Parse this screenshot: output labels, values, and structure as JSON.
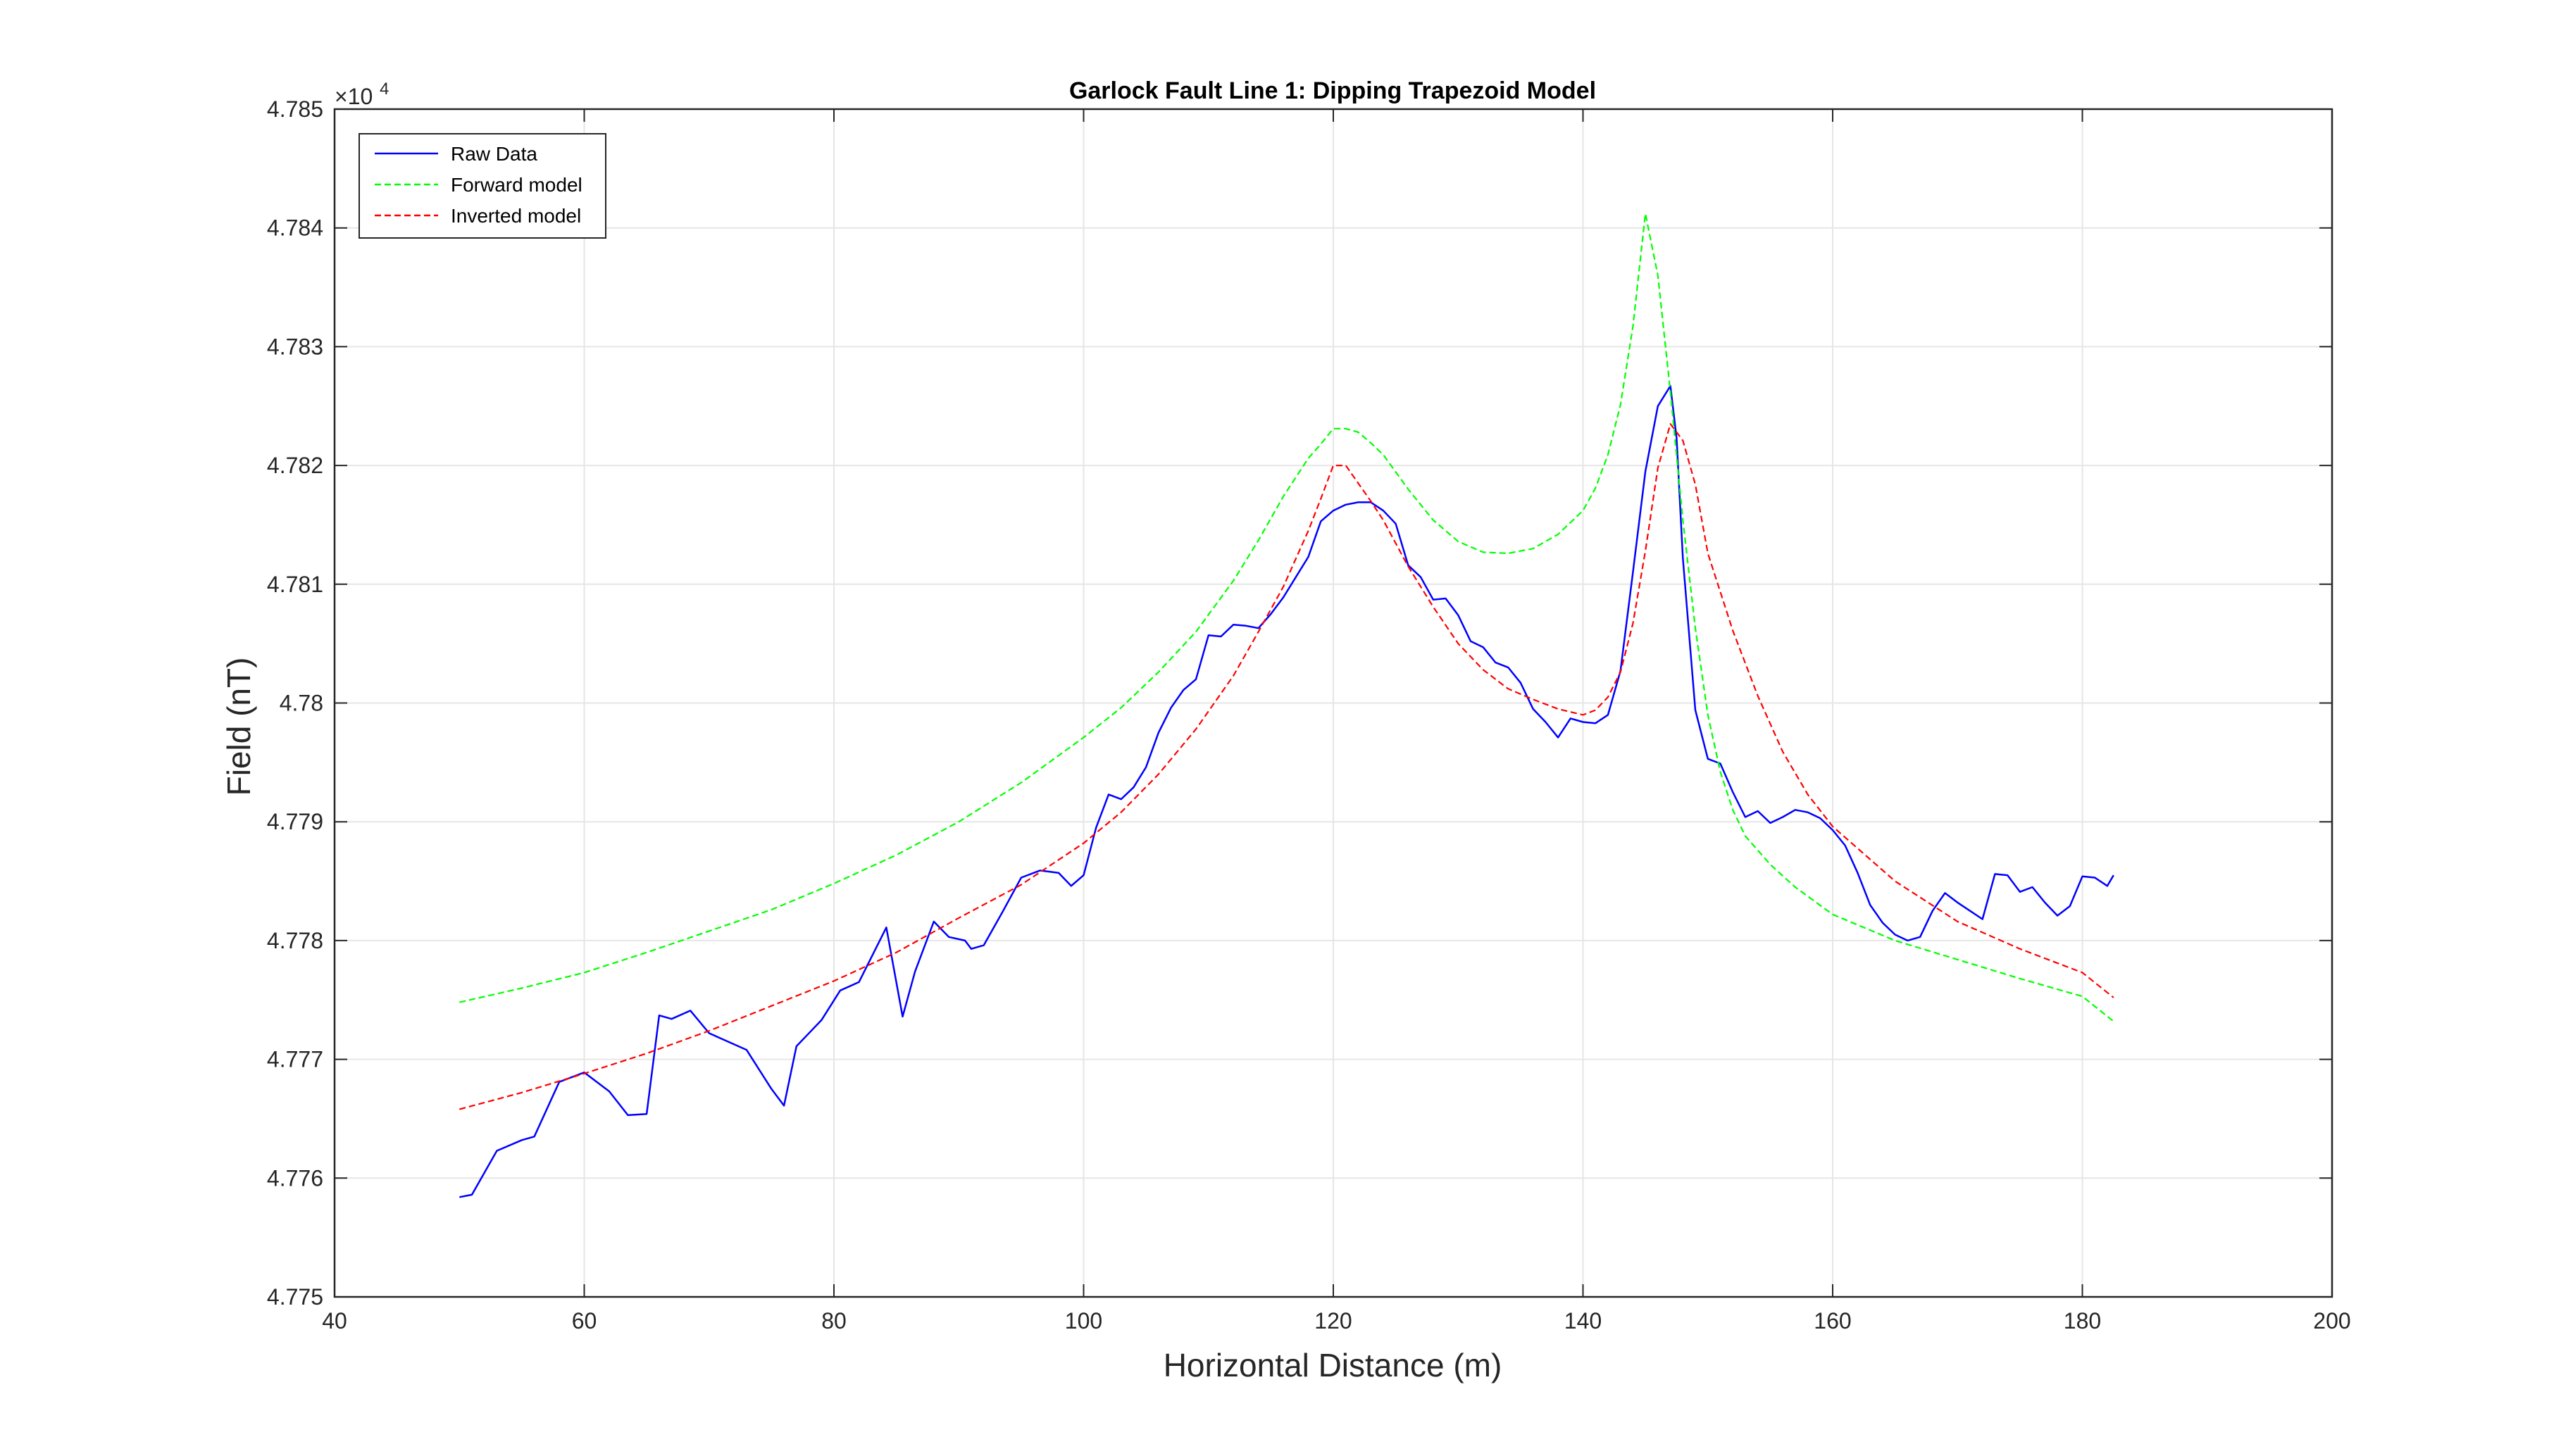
{
  "chart_data": {
    "type": "line",
    "title": "Garlock Fault Line 1: Dipping Trapezoid Model",
    "xlabel": "Horizontal Distance (m)",
    "ylabel": "Field (nT)",
    "exponent_base": "×10",
    "exponent_power": "4",
    "xlim": [
      40,
      200
    ],
    "ylim": [
      47750,
      47850
    ],
    "x_ticks": [
      40,
      60,
      80,
      100,
      120,
      140,
      160,
      180,
      200
    ],
    "y_ticks": [
      47750,
      47760,
      47770,
      47780,
      47790,
      47800,
      47810,
      47820,
      47830,
      47840,
      47850
    ],
    "x_tick_labels": [
      "40",
      "60",
      "80",
      "100",
      "120",
      "140",
      "160",
      "180",
      "200"
    ],
    "y_tick_labels": [
      "4.775",
      "4.776",
      "4.777",
      "4.778",
      "4.779",
      "4.78",
      "4.781",
      "4.782",
      "4.783",
      "4.784",
      "4.785"
    ],
    "grid": true,
    "legend_position": "top-left",
    "series": [
      {
        "name": "Raw Data",
        "color": "#0000ff",
        "style": "solid",
        "x": [
          50,
          51,
          53,
          55,
          56,
          58,
          60,
          62,
          63.5,
          65,
          66,
          67,
          68.5,
          70,
          73,
          75,
          76,
          77,
          79,
          80.5,
          82,
          84.2,
          85.5,
          86.5,
          88,
          89.2,
          90.5,
          91,
          92,
          93.5,
          95,
          96.5,
          98,
          99,
          100,
          101,
          102,
          103,
          104,
          105,
          106,
          107,
          108,
          109,
          110,
          111,
          112,
          113,
          114,
          115,
          116,
          117,
          118,
          119,
          120,
          121,
          122,
          123,
          124,
          125,
          126,
          127,
          128,
          129,
          130,
          131,
          132,
          133,
          134,
          135,
          136,
          137,
          138,
          139,
          140,
          141,
          142,
          143,
          144,
          145,
          146,
          147,
          147.5,
          148,
          149,
          150,
          151,
          152,
          153,
          154,
          155,
          156,
          157,
          158,
          159,
          160,
          161,
          162,
          163,
          164,
          165,
          166,
          167,
          168,
          169,
          170,
          171,
          172,
          173,
          174,
          175,
          176,
          177,
          178,
          179,
          180,
          181,
          182,
          182.5
        ],
        "y": [
          47758.4,
          47758.6,
          47762.3,
          47763.2,
          47763.5,
          47768.1,
          47768.9,
          47767.3,
          47765.3,
          47765.4,
          47773.7,
          47773.4,
          47774.1,
          47772.2,
          47770.8,
          47767.5,
          47766.1,
          47771.1,
          47773.3,
          47775.8,
          47776.5,
          47781.1,
          47773.6,
          47777.4,
          47781.6,
          47780.3,
          47780.0,
          47779.3,
          47779.6,
          47782.4,
          47785.3,
          47785.9,
          47785.7,
          47784.6,
          47785.5,
          47789.5,
          47792.3,
          47791.9,
          47792.9,
          47794.6,
          47797.5,
          47799.6,
          47801.1,
          47802.0,
          47805.7,
          47805.6,
          47806.6,
          47806.5,
          47806.3,
          47807.5,
          47808.9,
          47810.6,
          47812.3,
          47815.3,
          47816.2,
          47816.7,
          47816.9,
          47816.9,
          47816.2,
          47815.1,
          47811.6,
          47810.6,
          47808.7,
          47808.8,
          47807.4,
          47805.2,
          47804.7,
          47803.4,
          47803.0,
          47801.7,
          47799.5,
          47798.4,
          47797.1,
          47798.7,
          47798.4,
          47798.3,
          47799.0,
          47802.7,
          47811.0,
          47819.5,
          47825.0,
          47826.7,
          47822.3,
          47812.2,
          47799.4,
          47795.3,
          47794.9,
          47792.5,
          47790.4,
          47790.9,
          47789.9,
          47790.4,
          47791.0,
          47790.8,
          47790.3,
          47789.3,
          47788.0,
          47785.7,
          47783.0,
          47781.5,
          47780.5,
          47780.0,
          47780.3,
          47782.5,
          47784.0,
          47783.2,
          47782.5,
          47781.8,
          47785.6,
          47785.5,
          47784.1,
          47784.5,
          47783.2,
          47782.1,
          47782.9,
          47785.4,
          47785.3,
          47784.6,
          47785.5
        ]
      },
      {
        "name": "Forward model",
        "color": "#00ff00",
        "style": "dashed",
        "x": [
          50,
          55,
          60,
          65,
          70,
          75,
          80,
          85,
          90,
          95,
          100,
          103,
          106,
          109,
          112,
          114,
          116,
          118,
          119,
          120,
          121,
          122,
          123,
          124,
          126,
          128,
          130,
          132,
          134,
          136,
          138,
          140,
          141,
          142,
          143,
          144,
          145,
          146,
          147,
          148,
          149,
          150,
          151,
          152,
          153,
          155,
          157,
          160,
          165,
          170,
          175,
          180,
          182.5
        ],
        "y": [
          47774.8,
          47776.0,
          47777.3,
          47779.0,
          47780.8,
          47782.6,
          47784.8,
          47787.2,
          47790.0,
          47793.3,
          47797.1,
          47799.6,
          47802.6,
          47806.0,
          47810.3,
          47813.7,
          47817.4,
          47820.6,
          47821.8,
          47823.1,
          47823.1,
          47822.8,
          47821.9,
          47820.9,
          47818.0,
          47815.4,
          47813.6,
          47812.7,
          47812.6,
          47813.0,
          47814.2,
          47816.2,
          47818.1,
          47820.9,
          47825.1,
          47831.7,
          47841.2,
          47836.0,
          47826.2,
          47815.4,
          47806.3,
          47799.0,
          47794.2,
          47791.0,
          47788.8,
          47786.4,
          47784.5,
          47782.2,
          47780.0,
          47778.4,
          47776.8,
          47775.3,
          47773.2
        ]
      },
      {
        "name": "Inverted model",
        "color": "#ff0000",
        "style": "dashed",
        "x": [
          50,
          55,
          60,
          65,
          70,
          75,
          80,
          85,
          90,
          95,
          100,
          103,
          106,
          109,
          112,
          114,
          116,
          118,
          119,
          120,
          121,
          122,
          123,
          124,
          126,
          128,
          130,
          132,
          134,
          136,
          138,
          140,
          141,
          142,
          143,
          144,
          145,
          146,
          147,
          148,
          149,
          150,
          152,
          154,
          156,
          158,
          160,
          165,
          170,
          175,
          180,
          182.5
        ],
        "y": [
          47765.8,
          47767.2,
          47768.8,
          47770.5,
          47772.4,
          47774.5,
          47776.6,
          47779.0,
          47781.9,
          47784.7,
          47788.2,
          47790.8,
          47794.0,
          47797.8,
          47802.3,
          47806.0,
          47809.8,
          47814.5,
          47817.2,
          47820.0,
          47820.0,
          47818.5,
          47817.0,
          47815.4,
          47811.5,
          47808.1,
          47805.0,
          47802.8,
          47801.2,
          47800.3,
          47799.5,
          47799.0,
          47799.4,
          47800.5,
          47802.6,
          47806.7,
          47812.8,
          47819.8,
          47823.5,
          47822.1,
          47818.4,
          47812.6,
          47806.1,
          47800.6,
          47795.9,
          47792.3,
          47789.6,
          47785.0,
          47781.6,
          47779.3,
          47777.3,
          47775.2
        ]
      }
    ]
  }
}
